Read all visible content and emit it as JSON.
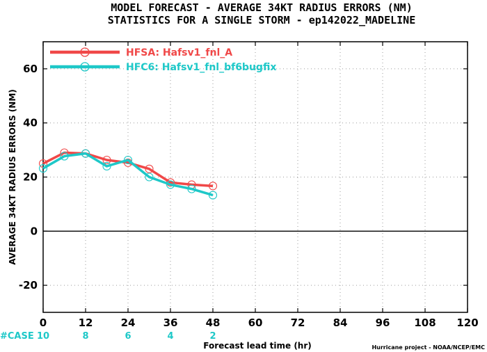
{
  "titles": {
    "line1": "MODEL FORECAST - AVERAGE 34KT RADIUS ERRORS (NM)",
    "line2": "STATISTICS FOR A SINGLE STORM - ep142022_MADELINE"
  },
  "footer": {
    "case_label": "#CASE",
    "credit": "Hurricane project - NOAA/NCEP/EMC"
  },
  "colors": {
    "series_a": "#f04848",
    "series_b": "#1ec8c8",
    "grid": "#9a9a9a",
    "zero_line": "#000000"
  },
  "chart_data": {
    "type": "line",
    "xlabel": "Forecast lead time (hr)",
    "ylabel": "AVERAGE 34KT RADIUS ERRORS (NM)",
    "xlim": [
      0,
      120
    ],
    "ylim": [
      -30,
      70
    ],
    "xticks": [
      0,
      12,
      24,
      36,
      48,
      60,
      72,
      84,
      96,
      108,
      120
    ],
    "yticks": [
      -20,
      0,
      20,
      40,
      60
    ],
    "grid": true,
    "legend_position": "top-left",
    "case_counts": [
      {
        "x": 0,
        "label": "10"
      },
      {
        "x": 12,
        "label": "8"
      },
      {
        "x": 24,
        "label": "6"
      },
      {
        "x": 36,
        "label": "4"
      },
      {
        "x": 48,
        "label": "2"
      }
    ],
    "series": [
      {
        "name": "HFSA: Hafsv1_fnl_A",
        "color_key": "series_a",
        "x": [
          0,
          6,
          12,
          18,
          24,
          30,
          36,
          42,
          48
        ],
        "y": [
          25,
          29,
          28.7,
          26.3,
          25.3,
          23,
          18,
          17.2,
          16.7
        ]
      },
      {
        "name": "HFC6: Hafsv1_fnl_bf6bugfix",
        "color_key": "series_b",
        "x": [
          0,
          6,
          12,
          18,
          24,
          30,
          36,
          42,
          48
        ],
        "y": [
          23.2,
          27.7,
          28.7,
          24,
          26.3,
          20,
          17.2,
          15.6,
          13.3
        ]
      }
    ]
  }
}
